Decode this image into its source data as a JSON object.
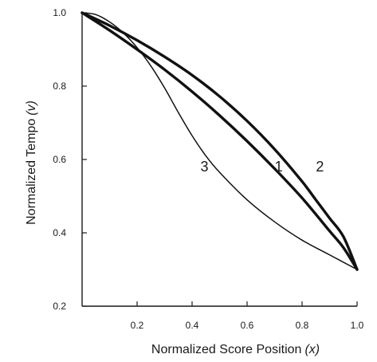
{
  "chart_data": {
    "type": "line",
    "title": "",
    "xlabel": "Normalized Score Position",
    "xlabel_var": "(x)",
    "ylabel": "Normalized Tempo",
    "ylabel_var": "(v)",
    "xlim": [
      0.0,
      1.0
    ],
    "ylim": [
      0.2,
      1.0
    ],
    "xticks": [
      0.2,
      0.4,
      0.6,
      0.8,
      1.0
    ],
    "xtick_labels": [
      "0.2",
      "0.4",
      "0.6",
      "0.8",
      "1.0"
    ],
    "yticks": [
      0.2,
      0.4,
      0.6,
      0.8,
      1.0
    ],
    "ytick_labels": [
      "0.2",
      "0.4",
      "0.6",
      "0.8",
      "1.0"
    ],
    "grid": false,
    "legend": "none",
    "series": [
      {
        "label": "1",
        "label_pos": [
          0.715,
          0.58
        ],
        "line_weight": "heavy",
        "x": [
          0.0,
          0.1,
          0.2,
          0.3,
          0.4,
          0.5,
          0.6,
          0.7,
          0.8,
          0.9,
          0.95,
          1.0
        ],
        "y": [
          1.0,
          0.952,
          0.9,
          0.845,
          0.785,
          0.72,
          0.65,
          0.575,
          0.495,
          0.405,
          0.36,
          0.3
        ]
      },
      {
        "label": "2",
        "label_pos": [
          0.865,
          0.58
        ],
        "line_weight": "heavy",
        "x": [
          0.0,
          0.1,
          0.2,
          0.3,
          0.4,
          0.5,
          0.6,
          0.7,
          0.8,
          0.85,
          0.9,
          0.95,
          1.0
        ],
        "y": [
          1.0,
          0.965,
          0.925,
          0.88,
          0.83,
          0.772,
          0.705,
          0.628,
          0.54,
          0.49,
          0.44,
          0.39,
          0.3
        ]
      },
      {
        "label": "3",
        "label_pos": [
          0.445,
          0.58
        ],
        "line_weight": "light",
        "x": [
          0.0,
          0.05,
          0.1,
          0.15,
          0.2,
          0.25,
          0.3,
          0.35,
          0.4,
          0.45,
          0.5,
          0.6,
          0.7,
          0.8,
          0.9,
          1.0
        ],
        "y": [
          1.0,
          0.995,
          0.975,
          0.945,
          0.905,
          0.855,
          0.795,
          0.728,
          0.665,
          0.61,
          0.565,
          0.49,
          0.43,
          0.38,
          0.34,
          0.3
        ]
      }
    ]
  }
}
